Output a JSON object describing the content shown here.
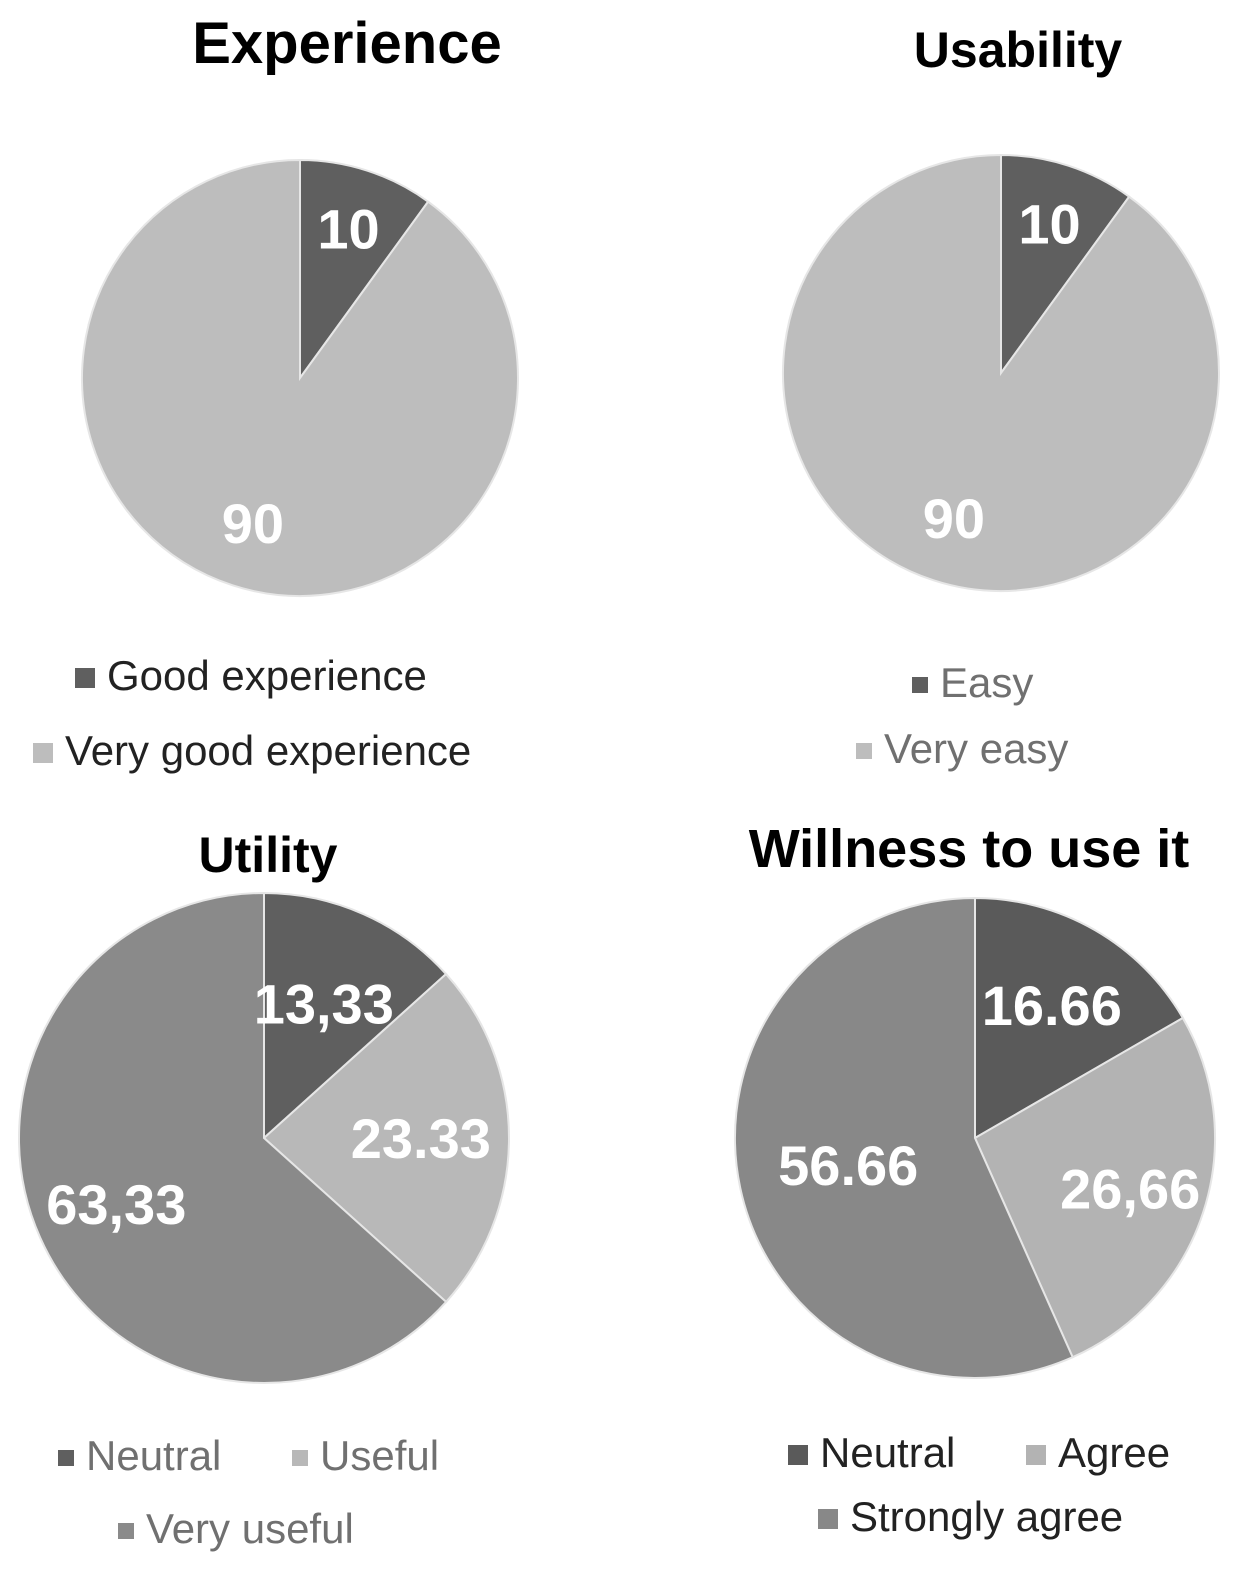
{
  "chart_data": [
    {
      "type": "pie",
      "title": "Experience",
      "series": [
        {
          "name": "Good experience",
          "value": 10,
          "label": "10",
          "color": "#5f5f5f"
        },
        {
          "name": "Very good experience",
          "value": 90,
          "label": "90",
          "color": "#bdbdbd"
        }
      ],
      "legend_text_color": "#222222",
      "legend_position": "bottom"
    },
    {
      "type": "pie",
      "title": "Usability",
      "series": [
        {
          "name": "Easy",
          "value": 10,
          "label": "10",
          "color": "#5f5f5f"
        },
        {
          "name": "Very easy",
          "value": 90,
          "label": "90",
          "color": "#bdbdbd"
        }
      ],
      "legend_text_color": "#707070",
      "legend_position": "bottom"
    },
    {
      "type": "pie",
      "title": "Utility",
      "series": [
        {
          "name": "Neutral",
          "value": 13.33,
          "label": "13,33",
          "color": "#5f5f5f"
        },
        {
          "name": "Useful",
          "value": 23.33,
          "label": "23.33",
          "color": "#b8b8b8"
        },
        {
          "name": "Very useful",
          "value": 63.33,
          "label": "63,33",
          "color": "#8a8a8a"
        }
      ],
      "legend_text_color": "#707070",
      "legend_position": "bottom"
    },
    {
      "type": "pie",
      "title": "Willness to use it",
      "series": [
        {
          "name": "Neutral",
          "value": 16.66,
          "label": "16.66",
          "color": "#5a5a5a"
        },
        {
          "name": "Agree",
          "value": 26.66,
          "label": "26,66",
          "color": "#b3b3b3"
        },
        {
          "name": "Strongly agree",
          "value": 56.66,
          "label": "56.66",
          "color": "#888888"
        }
      ],
      "legend_text_color": "#222222",
      "legend_position": "bottom"
    }
  ]
}
